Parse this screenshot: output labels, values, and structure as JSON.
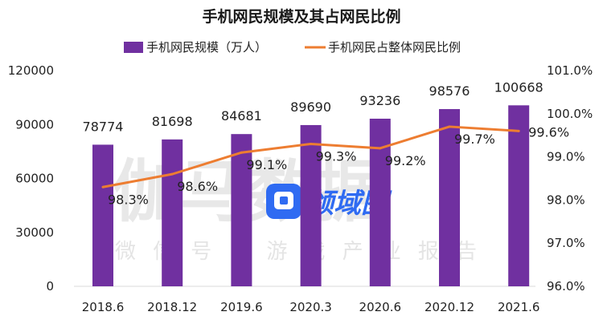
{
  "chart_data": {
    "type": "bar",
    "title": "手机网民规模及其占网民比例",
    "categories": [
      "2018.6",
      "2018.12",
      "2019.6",
      "2020.3",
      "2020.6",
      "2020.12",
      "2021.6"
    ],
    "series": [
      {
        "name": "手机网民规模（万人）",
        "type": "bar",
        "axis": "left",
        "color": "#7030a0",
        "values": [
          78774,
          81698,
          84681,
          89690,
          93236,
          98576,
          100668
        ],
        "labels": [
          "78774",
          "81698",
          "84681",
          "89690",
          "93236",
          "98576",
          "100668"
        ]
      },
      {
        "name": "手机网民占整体网民比例",
        "type": "line",
        "axis": "right",
        "color": "#ed7d31",
        "values": [
          98.3,
          98.6,
          99.1,
          99.3,
          99.2,
          99.7,
          99.6
        ],
        "labels": [
          "98.3%",
          "98.6%",
          "99.1%",
          "99.3%",
          "99.2%",
          "99.7%",
          "99.6%"
        ]
      }
    ],
    "y_left": {
      "range": [
        0,
        120000
      ],
      "ticks": [
        0,
        30000,
        60000,
        90000,
        120000
      ],
      "tick_labels": [
        "0",
        "30000",
        "60000",
        "90000",
        "120000"
      ]
    },
    "y_right": {
      "range": [
        96.0,
        101.0
      ],
      "ticks": [
        96,
        97,
        98,
        99,
        100,
        101
      ],
      "tick_labels": [
        "96.0%",
        "97.0%",
        "98.0%",
        "99.0%",
        "100.0%",
        "101.0%"
      ]
    },
    "grid": false,
    "legend_position": "top-center"
  },
  "watermark": {
    "main": "伽马数据",
    "sub": "微信号：游戏产业报告",
    "logo_text": "领域图",
    "logo_icon": "chat-bubble-icon"
  }
}
